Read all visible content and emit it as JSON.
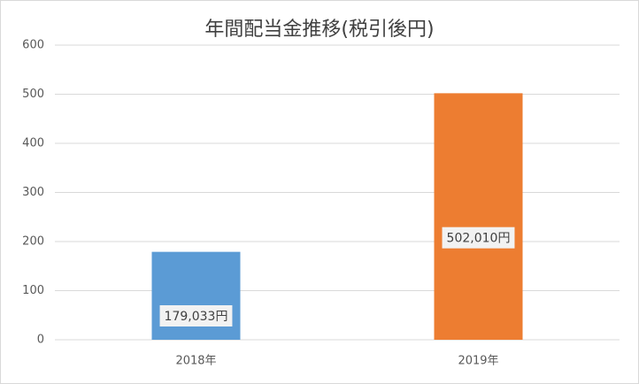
{
  "chart_data": {
    "type": "bar",
    "title": "年間配当金推移(税引後円)",
    "categories": [
      "2018年",
      "2019年"
    ],
    "values": [
      179.033,
      502.01
    ],
    "value_labels": [
      "179,033円",
      "502,010円"
    ],
    "colors": [
      "#5b9bd5",
      "#ed7d31"
    ],
    "ylim": [
      0,
      600
    ],
    "yticks": [
      0,
      100,
      200,
      300,
      400,
      500,
      600
    ],
    "grid": true
  }
}
